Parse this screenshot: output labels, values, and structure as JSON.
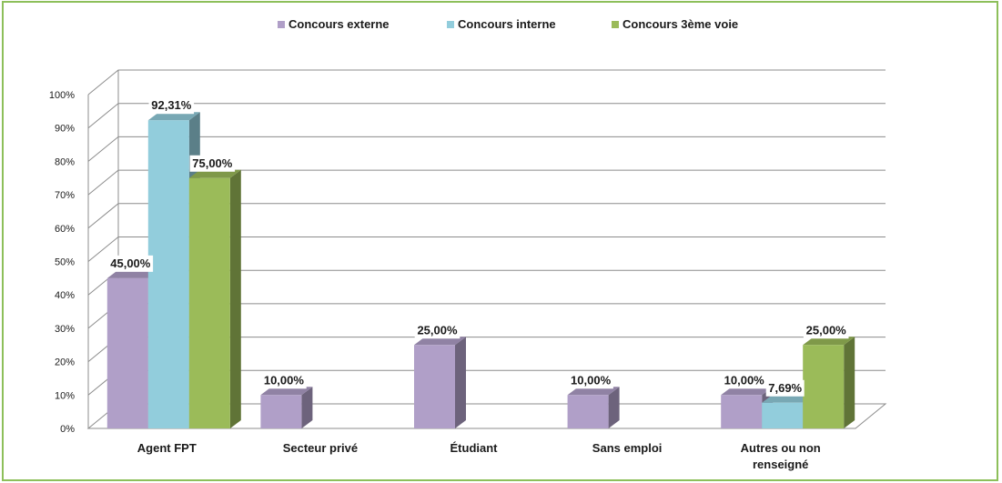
{
  "chart_data": {
    "type": "bar",
    "title": "",
    "xlabel": "",
    "ylabel": "",
    "ylim": [
      0,
      100
    ],
    "y_ticks": [
      "0%",
      "10%",
      "20%",
      "30%",
      "40%",
      "50%",
      "60%",
      "70%",
      "80%",
      "90%",
      "100%"
    ],
    "categories": [
      "Agent FPT",
      "Secteur privé",
      "Étudiant",
      "Sans emploi",
      "Autres ou non renseigné"
    ],
    "legend_position": "top",
    "grid": true,
    "series": [
      {
        "name": "Concours externe",
        "color": "#b09fc8",
        "values": [
          45.0,
          10.0,
          25.0,
          10.0,
          10.0
        ],
        "labels": [
          "45,00%",
          "10,00%",
          "25,00%",
          "10,00%",
          "10,00%"
        ]
      },
      {
        "name": "Concours interne",
        "color": "#92cddc",
        "values": [
          92.31,
          0,
          0,
          0,
          7.69
        ],
        "labels": [
          "92,31%",
          "",
          "",
          "",
          "7,69%"
        ]
      },
      {
        "name": "Concours 3ème voie",
        "color": "#9bbb59",
        "values": [
          75.0,
          0,
          0,
          0,
          25.0
        ],
        "labels": [
          "75,00%",
          "",
          "",
          "",
          "25,00%"
        ]
      }
    ]
  }
}
